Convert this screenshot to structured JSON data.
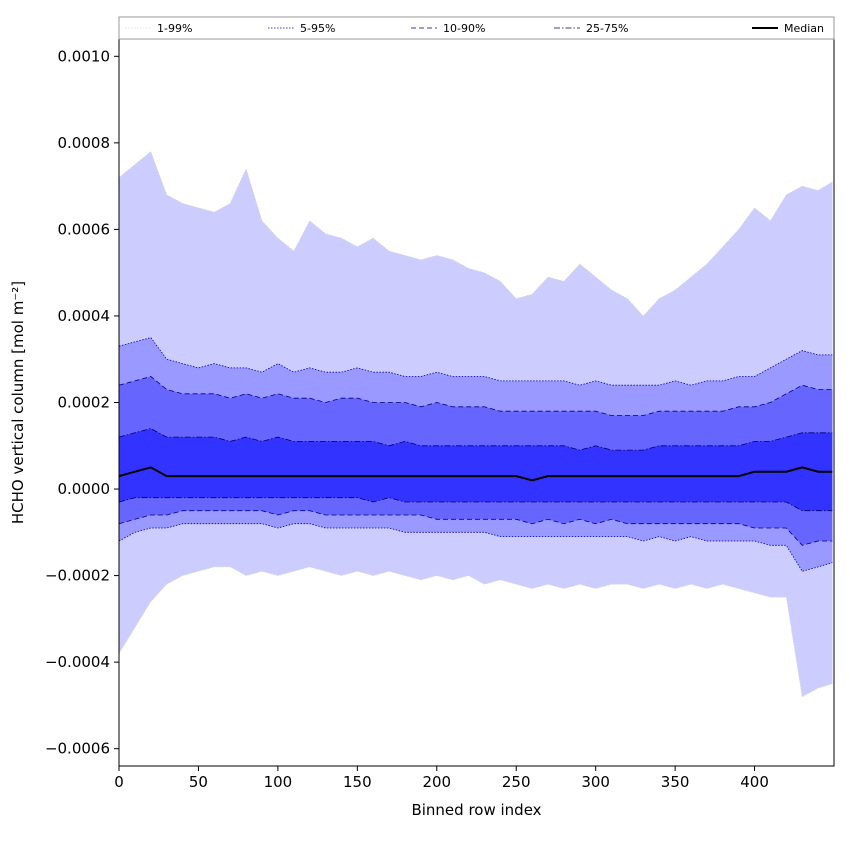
{
  "chart_data": {
    "type": "area",
    "title": "",
    "xlabel": "Binned row index",
    "ylabel": "HCHO vertical column [mol m⁻²]",
    "xlim": [
      0,
      450
    ],
    "ylim": [
      -0.00064,
      0.00104
    ],
    "xticks": [
      0,
      50,
      100,
      150,
      200,
      250,
      300,
      350,
      400
    ],
    "xtick_labels": [
      "0",
      "50",
      "100",
      "150",
      "200",
      "250",
      "300",
      "350",
      "400"
    ],
    "yticks": [
      -0.0006,
      -0.0004,
      -0.0002,
      0.0,
      0.0002,
      0.0004,
      0.0006,
      0.0008,
      0.001
    ],
    "ytick_labels": [
      "−0.0006",
      "−0.0004",
      "−0.0002",
      "0.0000",
      "0.0002",
      "0.0004",
      "0.0006",
      "0.0008",
      "0.0010"
    ],
    "grid": false,
    "legend_position": "top, above plot",
    "x": [
      0,
      10,
      20,
      30,
      40,
      50,
      60,
      70,
      80,
      90,
      100,
      110,
      120,
      130,
      140,
      150,
      160,
      170,
      180,
      190,
      200,
      210,
      220,
      230,
      240,
      250,
      260,
      270,
      280,
      290,
      300,
      310,
      320,
      330,
      340,
      350,
      360,
      370,
      380,
      390,
      400,
      410,
      420,
      430,
      440,
      449
    ],
    "bands": [
      {
        "name": "1-99%",
        "color": "#ccccff",
        "line_color": "#d8d8d8",
        "line_style": "dotted",
        "upper": [
          0.00072,
          0.00075,
          0.00078,
          0.00068,
          0.00066,
          0.00065,
          0.00064,
          0.00066,
          0.00074,
          0.00062,
          0.00058,
          0.00055,
          0.00062,
          0.00059,
          0.00058,
          0.00056,
          0.00058,
          0.00055,
          0.00054,
          0.00053,
          0.00054,
          0.00053,
          0.00051,
          0.0005,
          0.00048,
          0.00044,
          0.00045,
          0.00049,
          0.00048,
          0.00052,
          0.00049,
          0.00046,
          0.00044,
          0.0004,
          0.00044,
          0.00046,
          0.00049,
          0.00052,
          0.00056,
          0.0006,
          0.00065,
          0.00062,
          0.00068,
          0.0007,
          0.00069,
          0.00071
        ],
        "lower": [
          -0.00038,
          -0.00032,
          -0.00026,
          -0.00022,
          -0.0002,
          -0.00019,
          -0.00018,
          -0.00018,
          -0.0002,
          -0.00019,
          -0.0002,
          -0.00019,
          -0.00018,
          -0.00019,
          -0.0002,
          -0.00019,
          -0.0002,
          -0.00019,
          -0.0002,
          -0.00021,
          -0.0002,
          -0.00021,
          -0.0002,
          -0.00022,
          -0.00021,
          -0.00022,
          -0.00023,
          -0.00022,
          -0.00023,
          -0.00022,
          -0.00023,
          -0.00022,
          -0.00022,
          -0.00023,
          -0.00022,
          -0.00023,
          -0.00022,
          -0.00023,
          -0.00022,
          -0.00023,
          -0.00024,
          -0.00025,
          -0.00025,
          -0.00048,
          -0.00046,
          -0.00045
        ]
      },
      {
        "name": "5-95%",
        "color": "#9999ff",
        "line_color": "#0000a0",
        "line_style": "dotted",
        "upper": [
          0.00033,
          0.00034,
          0.00035,
          0.0003,
          0.00029,
          0.00028,
          0.00029,
          0.00028,
          0.00028,
          0.00027,
          0.00029,
          0.00027,
          0.00028,
          0.00027,
          0.00027,
          0.00028,
          0.00027,
          0.00027,
          0.00026,
          0.00026,
          0.00027,
          0.00026,
          0.00026,
          0.00026,
          0.00025,
          0.00025,
          0.00025,
          0.00025,
          0.00025,
          0.00024,
          0.00025,
          0.00024,
          0.00024,
          0.00024,
          0.00024,
          0.00025,
          0.00024,
          0.00025,
          0.00025,
          0.00026,
          0.00026,
          0.00028,
          0.0003,
          0.00032,
          0.00031,
          0.00031
        ],
        "lower": [
          -0.00012,
          -0.0001,
          -9e-05,
          -9e-05,
          -8e-05,
          -8e-05,
          -8e-05,
          -8e-05,
          -8e-05,
          -8e-05,
          -9e-05,
          -8e-05,
          -8e-05,
          -9e-05,
          -9e-05,
          -9e-05,
          -9e-05,
          -9e-05,
          -0.0001,
          -0.0001,
          -0.0001,
          -0.0001,
          -0.0001,
          -0.0001,
          -0.00011,
          -0.00011,
          -0.00011,
          -0.00011,
          -0.00011,
          -0.00011,
          -0.00011,
          -0.00011,
          -0.00011,
          -0.00012,
          -0.00011,
          -0.00012,
          -0.00011,
          -0.00012,
          -0.00012,
          -0.00012,
          -0.00012,
          -0.00013,
          -0.00013,
          -0.00019,
          -0.00018,
          -0.00017
        ]
      },
      {
        "name": "10-90%",
        "color": "#6666ff",
        "line_color": "#000080",
        "line_style": "dashed",
        "upper": [
          0.00024,
          0.00025,
          0.00026,
          0.00023,
          0.00022,
          0.00022,
          0.00022,
          0.00021,
          0.00022,
          0.00021,
          0.00022,
          0.00021,
          0.00021,
          0.0002,
          0.00021,
          0.00021,
          0.0002,
          0.0002,
          0.0002,
          0.00019,
          0.0002,
          0.00019,
          0.00019,
          0.00019,
          0.00018,
          0.00018,
          0.00018,
          0.00018,
          0.00018,
          0.00018,
          0.00018,
          0.00017,
          0.00017,
          0.00017,
          0.00018,
          0.00018,
          0.00018,
          0.00018,
          0.00018,
          0.00019,
          0.00019,
          0.0002,
          0.00022,
          0.00024,
          0.00023,
          0.00023
        ],
        "lower": [
          -8e-05,
          -7e-05,
          -6e-05,
          -6e-05,
          -5e-05,
          -5e-05,
          -5e-05,
          -5e-05,
          -5e-05,
          -5e-05,
          -6e-05,
          -5e-05,
          -5e-05,
          -6e-05,
          -6e-05,
          -6e-05,
          -6e-05,
          -6e-05,
          -6e-05,
          -6e-05,
          -7e-05,
          -7e-05,
          -7e-05,
          -7e-05,
          -7e-05,
          -7e-05,
          -8e-05,
          -7e-05,
          -8e-05,
          -7e-05,
          -8e-05,
          -7e-05,
          -8e-05,
          -8e-05,
          -8e-05,
          -8e-05,
          -8e-05,
          -8e-05,
          -8e-05,
          -8e-05,
          -9e-05,
          -9e-05,
          -9e-05,
          -0.00013,
          -0.00012,
          -0.00012
        ]
      },
      {
        "name": "25-75%",
        "color": "#3333ff",
        "line_color": "#00006a",
        "line_style": "dashdot",
        "upper": [
          0.00012,
          0.00013,
          0.00014,
          0.00012,
          0.00012,
          0.00012,
          0.00012,
          0.00011,
          0.00012,
          0.00011,
          0.00012,
          0.00011,
          0.00011,
          0.00011,
          0.00011,
          0.00011,
          0.00011,
          0.0001,
          0.00011,
          0.0001,
          0.0001,
          0.0001,
          0.0001,
          0.0001,
          0.0001,
          0.0001,
          0.0001,
          0.0001,
          0.0001,
          9e-05,
          0.0001,
          9e-05,
          9e-05,
          9e-05,
          0.0001,
          0.0001,
          0.0001,
          0.0001,
          0.0001,
          0.0001,
          0.00011,
          0.00011,
          0.00012,
          0.00013,
          0.00013,
          0.00013
        ],
        "lower": [
          -3e-05,
          -2e-05,
          -2e-05,
          -2e-05,
          -2e-05,
          -2e-05,
          -2e-05,
          -2e-05,
          -2e-05,
          -2e-05,
          -2e-05,
          -2e-05,
          -2e-05,
          -2e-05,
          -2e-05,
          -2e-05,
          -3e-05,
          -2e-05,
          -3e-05,
          -3e-05,
          -3e-05,
          -3e-05,
          -3e-05,
          -3e-05,
          -3e-05,
          -3e-05,
          -3e-05,
          -3e-05,
          -3e-05,
          -3e-05,
          -3e-05,
          -3e-05,
          -3e-05,
          -3e-05,
          -3e-05,
          -3e-05,
          -3e-05,
          -3e-05,
          -3e-05,
          -3e-05,
          -3e-05,
          -3e-05,
          -3e-05,
          -5e-05,
          -5e-05,
          -5e-05
        ]
      }
    ],
    "series": [
      {
        "name": "Median",
        "color": "#000000",
        "values": [
          3e-05,
          4e-05,
          5e-05,
          3e-05,
          3e-05,
          3e-05,
          3e-05,
          3e-05,
          3e-05,
          3e-05,
          3e-05,
          3e-05,
          3e-05,
          3e-05,
          3e-05,
          3e-05,
          3e-05,
          3e-05,
          3e-05,
          3e-05,
          3e-05,
          3e-05,
          3e-05,
          3e-05,
          3e-05,
          3e-05,
          2e-05,
          3e-05,
          3e-05,
          3e-05,
          3e-05,
          3e-05,
          3e-05,
          3e-05,
          3e-05,
          3e-05,
          3e-05,
          3e-05,
          3e-05,
          3e-05,
          4e-05,
          4e-05,
          4e-05,
          5e-05,
          4e-05,
          4e-05
        ]
      }
    ]
  }
}
